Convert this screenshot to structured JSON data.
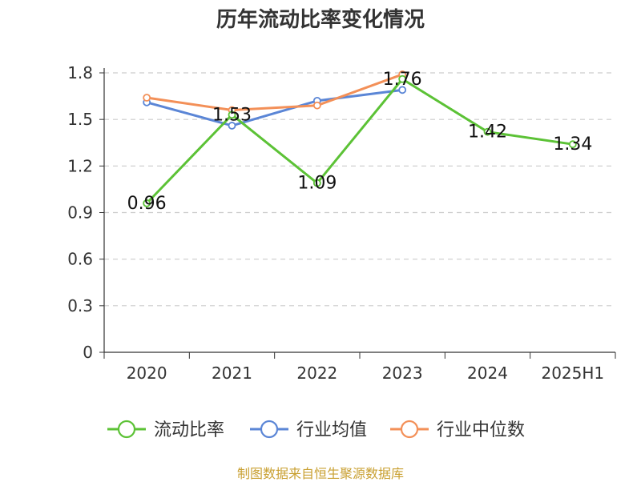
{
  "title": "历年流动比率变化情况",
  "source": "制图数据来自恒生聚源数据库",
  "chart_data": {
    "type": "line",
    "title": "历年流动比率变化情况",
    "categories": [
      "2020",
      "2021",
      "2022",
      "2023",
      "2024",
      "2025H1"
    ],
    "ylim": [
      0,
      1.8
    ],
    "yticks": [
      "0",
      "0.3",
      "0.6",
      "0.9",
      "1.2",
      "1.5",
      "1.8"
    ],
    "grid": true,
    "legend_position": "bottom",
    "series": [
      {
        "name": "流动比率",
        "color": "#5cc236",
        "values": [
          0.96,
          1.53,
          1.09,
          1.76,
          1.42,
          1.34
        ],
        "labels": [
          "0.96",
          "1.53",
          "1.09",
          "1.76",
          "1.42",
          "1.34"
        ]
      },
      {
        "name": "行业均值",
        "color": "#5b86d6",
        "values": [
          1.61,
          1.46,
          1.62,
          1.69,
          null,
          null
        ]
      },
      {
        "name": "行业中位数",
        "color": "#f39058",
        "values": [
          1.64,
          1.56,
          1.59,
          1.79,
          null,
          null
        ]
      }
    ]
  }
}
